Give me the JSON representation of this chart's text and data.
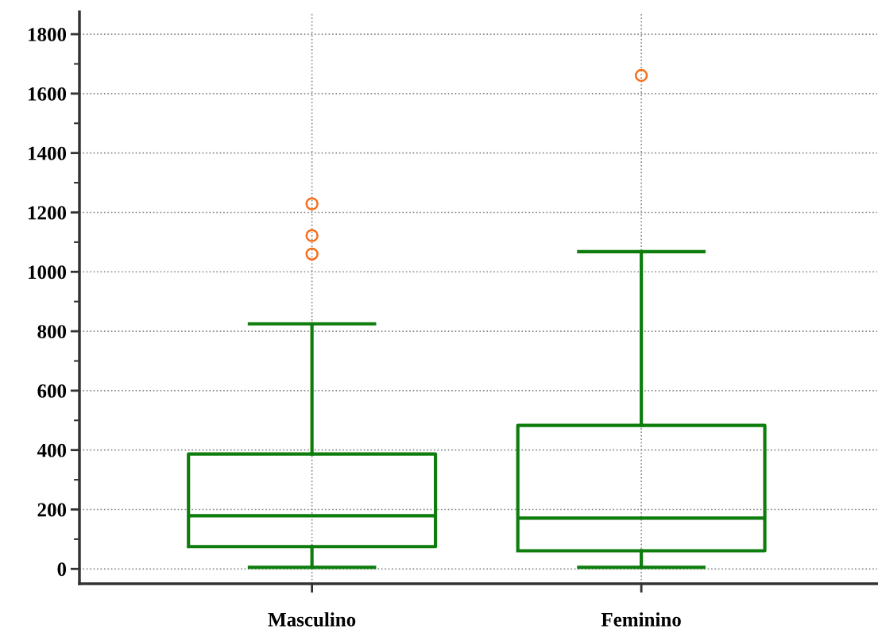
{
  "chart_data": {
    "type": "box",
    "categories": [
      "Masculino",
      "Feminino"
    ],
    "boxes": [
      {
        "low": 5,
        "q1": 75,
        "median": 179,
        "q3": 387,
        "high": 825,
        "outliers": [
          1060,
          1122,
          1229
        ]
      },
      {
        "low": 5,
        "q1": 61,
        "median": 171,
        "q3": 483,
        "high": 1068,
        "outliers": [
          1661
        ]
      }
    ],
    "color": "#0e7d0e",
    "ylim": [
      -50,
      1875
    ],
    "yticks": [
      0,
      200,
      400,
      600,
      800,
      1000,
      1200,
      1400,
      1600,
      1800
    ],
    "grid": true,
    "marker": "circle"
  }
}
